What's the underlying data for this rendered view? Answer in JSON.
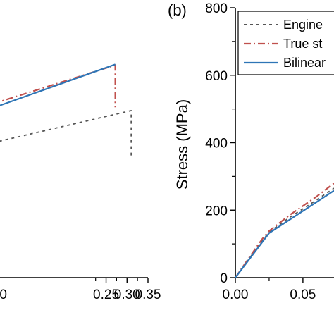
{
  "chart_data": [
    {
      "type": "line",
      "panel": "left",
      "title": "",
      "xlabel": "",
      "ylabel": "",
      "xlim": [
        -0.02,
        0.35
      ],
      "ylim": [
        0,
        800
      ],
      "x_ticks": [
        0.25,
        0.3,
        0.35
      ],
      "x_tick_labels": [
        "0.25",
        "0.30",
        "0.35"
      ],
      "partial_tick_label": "0",
      "series": [
        {
          "style": "dotted",
          "color": "#555555",
          "points": [
            [
              -0.02,
              400
            ],
            [
              0.31,
              495
            ],
            [
              0.31,
              355
            ]
          ]
        },
        {
          "style": "dashdot",
          "color": "#c0504d",
          "points": [
            [
              -0.02,
              515
            ],
            [
              0.272,
              630
            ],
            [
              0.272,
              505
            ]
          ]
        },
        {
          "style": "solid",
          "color": "#2e75b6",
          "points": [
            [
              -0.02,
              503
            ],
            [
              0.272,
              632
            ]
          ]
        }
      ]
    },
    {
      "type": "line",
      "panel": "right",
      "panel_label": "(b)",
      "title": "",
      "xlabel": "",
      "ylabel": "Stress (MPa)",
      "xlim": [
        0.0,
        0.073
      ],
      "ylim": [
        0,
        800
      ],
      "x_ticks": [
        0.0,
        0.05
      ],
      "x_tick_labels": [
        "0.00",
        "0.05"
      ],
      "y_ticks": [
        0,
        200,
        400,
        600,
        800
      ],
      "y_tick_labels": [
        "0",
        "200",
        "400",
        "600",
        "800"
      ],
      "legend": {
        "placement": "top-right",
        "entries": [
          {
            "label": "Engine",
            "style": "dotted",
            "color": "#555555"
          },
          {
            "label": "True st",
            "style": "dashdot",
            "color": "#c0504d"
          },
          {
            "label": "Bilinear",
            "style": "solid",
            "color": "#2e75b6"
          }
        ]
      },
      "series": [
        {
          "style": "dotted",
          "color": "#555555",
          "points": [
            [
              0.0,
              0
            ],
            [
              0.01,
              55
            ],
            [
              0.02,
              110
            ],
            [
              0.025,
              135
            ],
            [
              0.04,
              178
            ],
            [
              0.06,
              230
            ],
            [
              0.073,
              265
            ]
          ]
        },
        {
          "style": "dashdot",
          "color": "#c0504d",
          "points": [
            [
              0.0,
              0
            ],
            [
              0.01,
              58
            ],
            [
              0.02,
              115
            ],
            [
              0.025,
              138
            ],
            [
              0.04,
              185
            ],
            [
              0.06,
              240
            ],
            [
              0.073,
              280
            ]
          ]
        },
        {
          "style": "solid",
          "color": "#2e75b6",
          "points": [
            [
              0.0,
              0
            ],
            [
              0.025,
              132
            ],
            [
              0.073,
              258
            ]
          ]
        }
      ]
    }
  ]
}
